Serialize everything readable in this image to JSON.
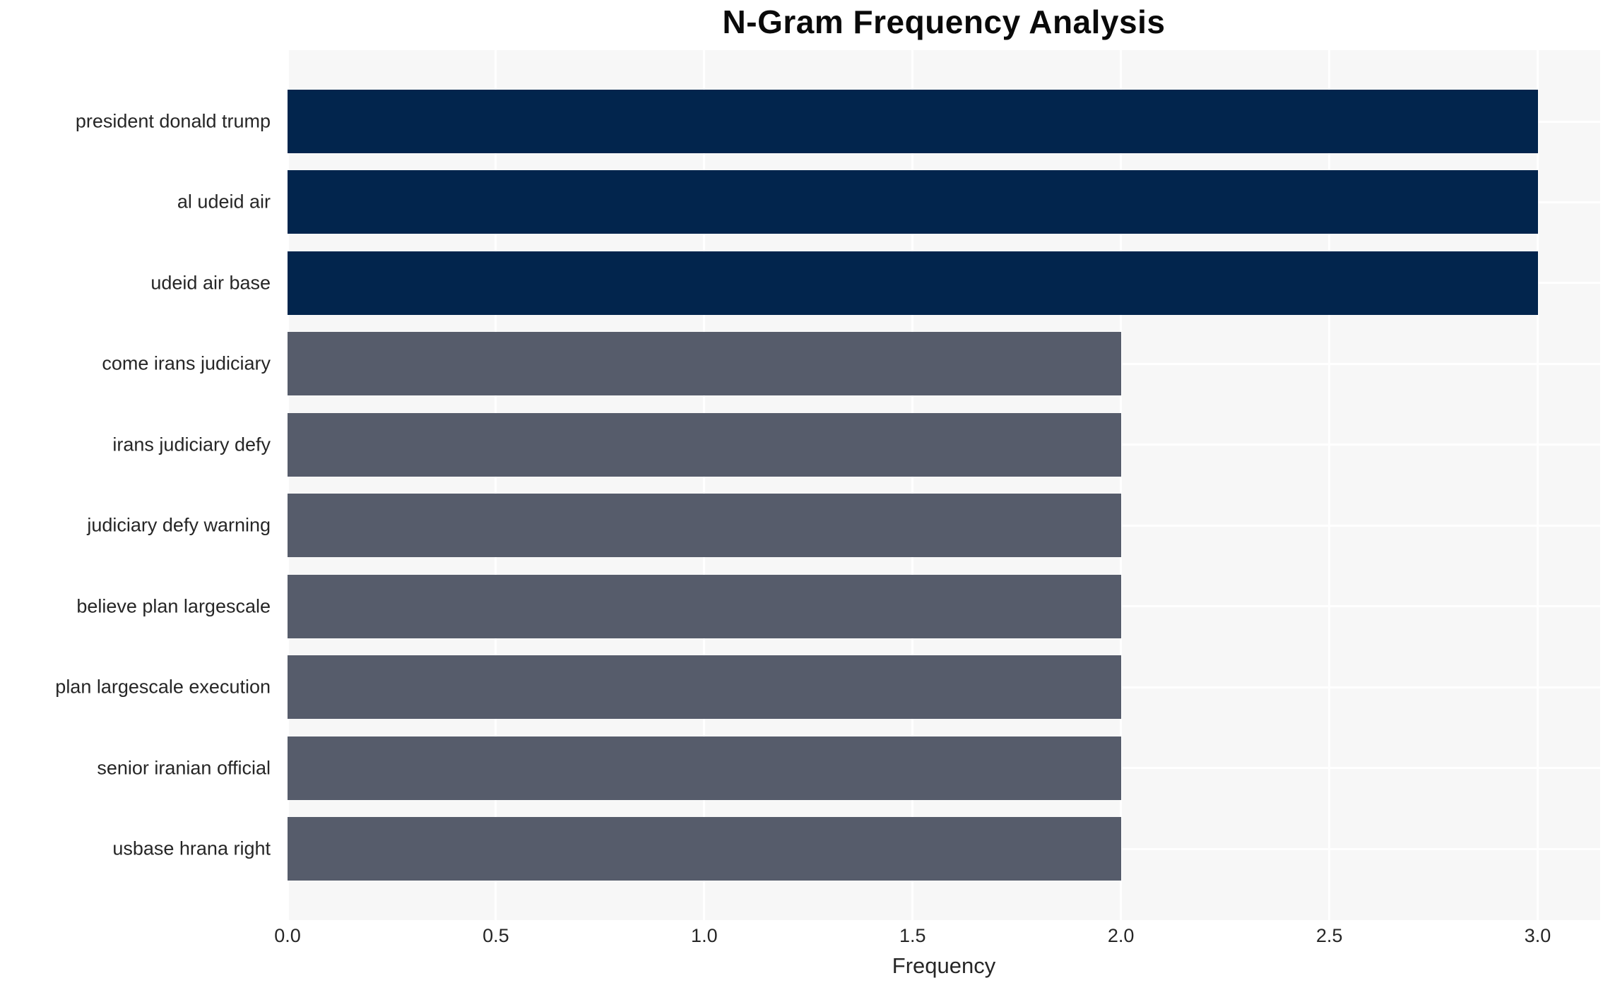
{
  "title": "N-Gram Frequency Analysis",
  "chart_data": {
    "type": "bar",
    "orientation": "horizontal",
    "title": "N-Gram Frequency Analysis",
    "categories": [
      "president donald trump",
      "al udeid air",
      "udeid air base",
      "come irans judiciary",
      "irans judiciary defy",
      "judiciary defy warning",
      "believe plan largescale",
      "plan largescale execution",
      "senior iranian official",
      "usbase hrana right"
    ],
    "values": [
      3,
      3,
      3,
      2,
      2,
      2,
      2,
      2,
      2,
      2
    ],
    "bar_colors": [
      "#02254d",
      "#02254d",
      "#02254d",
      "#565c6b",
      "#565c6b",
      "#565c6b",
      "#565c6b",
      "#565c6b",
      "#565c6b",
      "#565c6b"
    ],
    "xlabel": "Frequency",
    "ylabel": "",
    "xlim": [
      0,
      3.15
    ],
    "xticks": [
      0.0,
      0.5,
      1.0,
      1.5,
      2.0,
      2.5,
      3.0
    ],
    "xtick_labels": [
      "0.0",
      "0.5",
      "1.0",
      "1.5",
      "2.0",
      "2.5",
      "3.0"
    ],
    "grid": true,
    "legend": false
  },
  "colors": {
    "figure_bg": "#ffffff",
    "plot_bg": "#f7f7f7",
    "grid_line": "#ffffff",
    "text": "#262626",
    "bar_primary": "#02254d",
    "bar_secondary": "#565c6b"
  }
}
